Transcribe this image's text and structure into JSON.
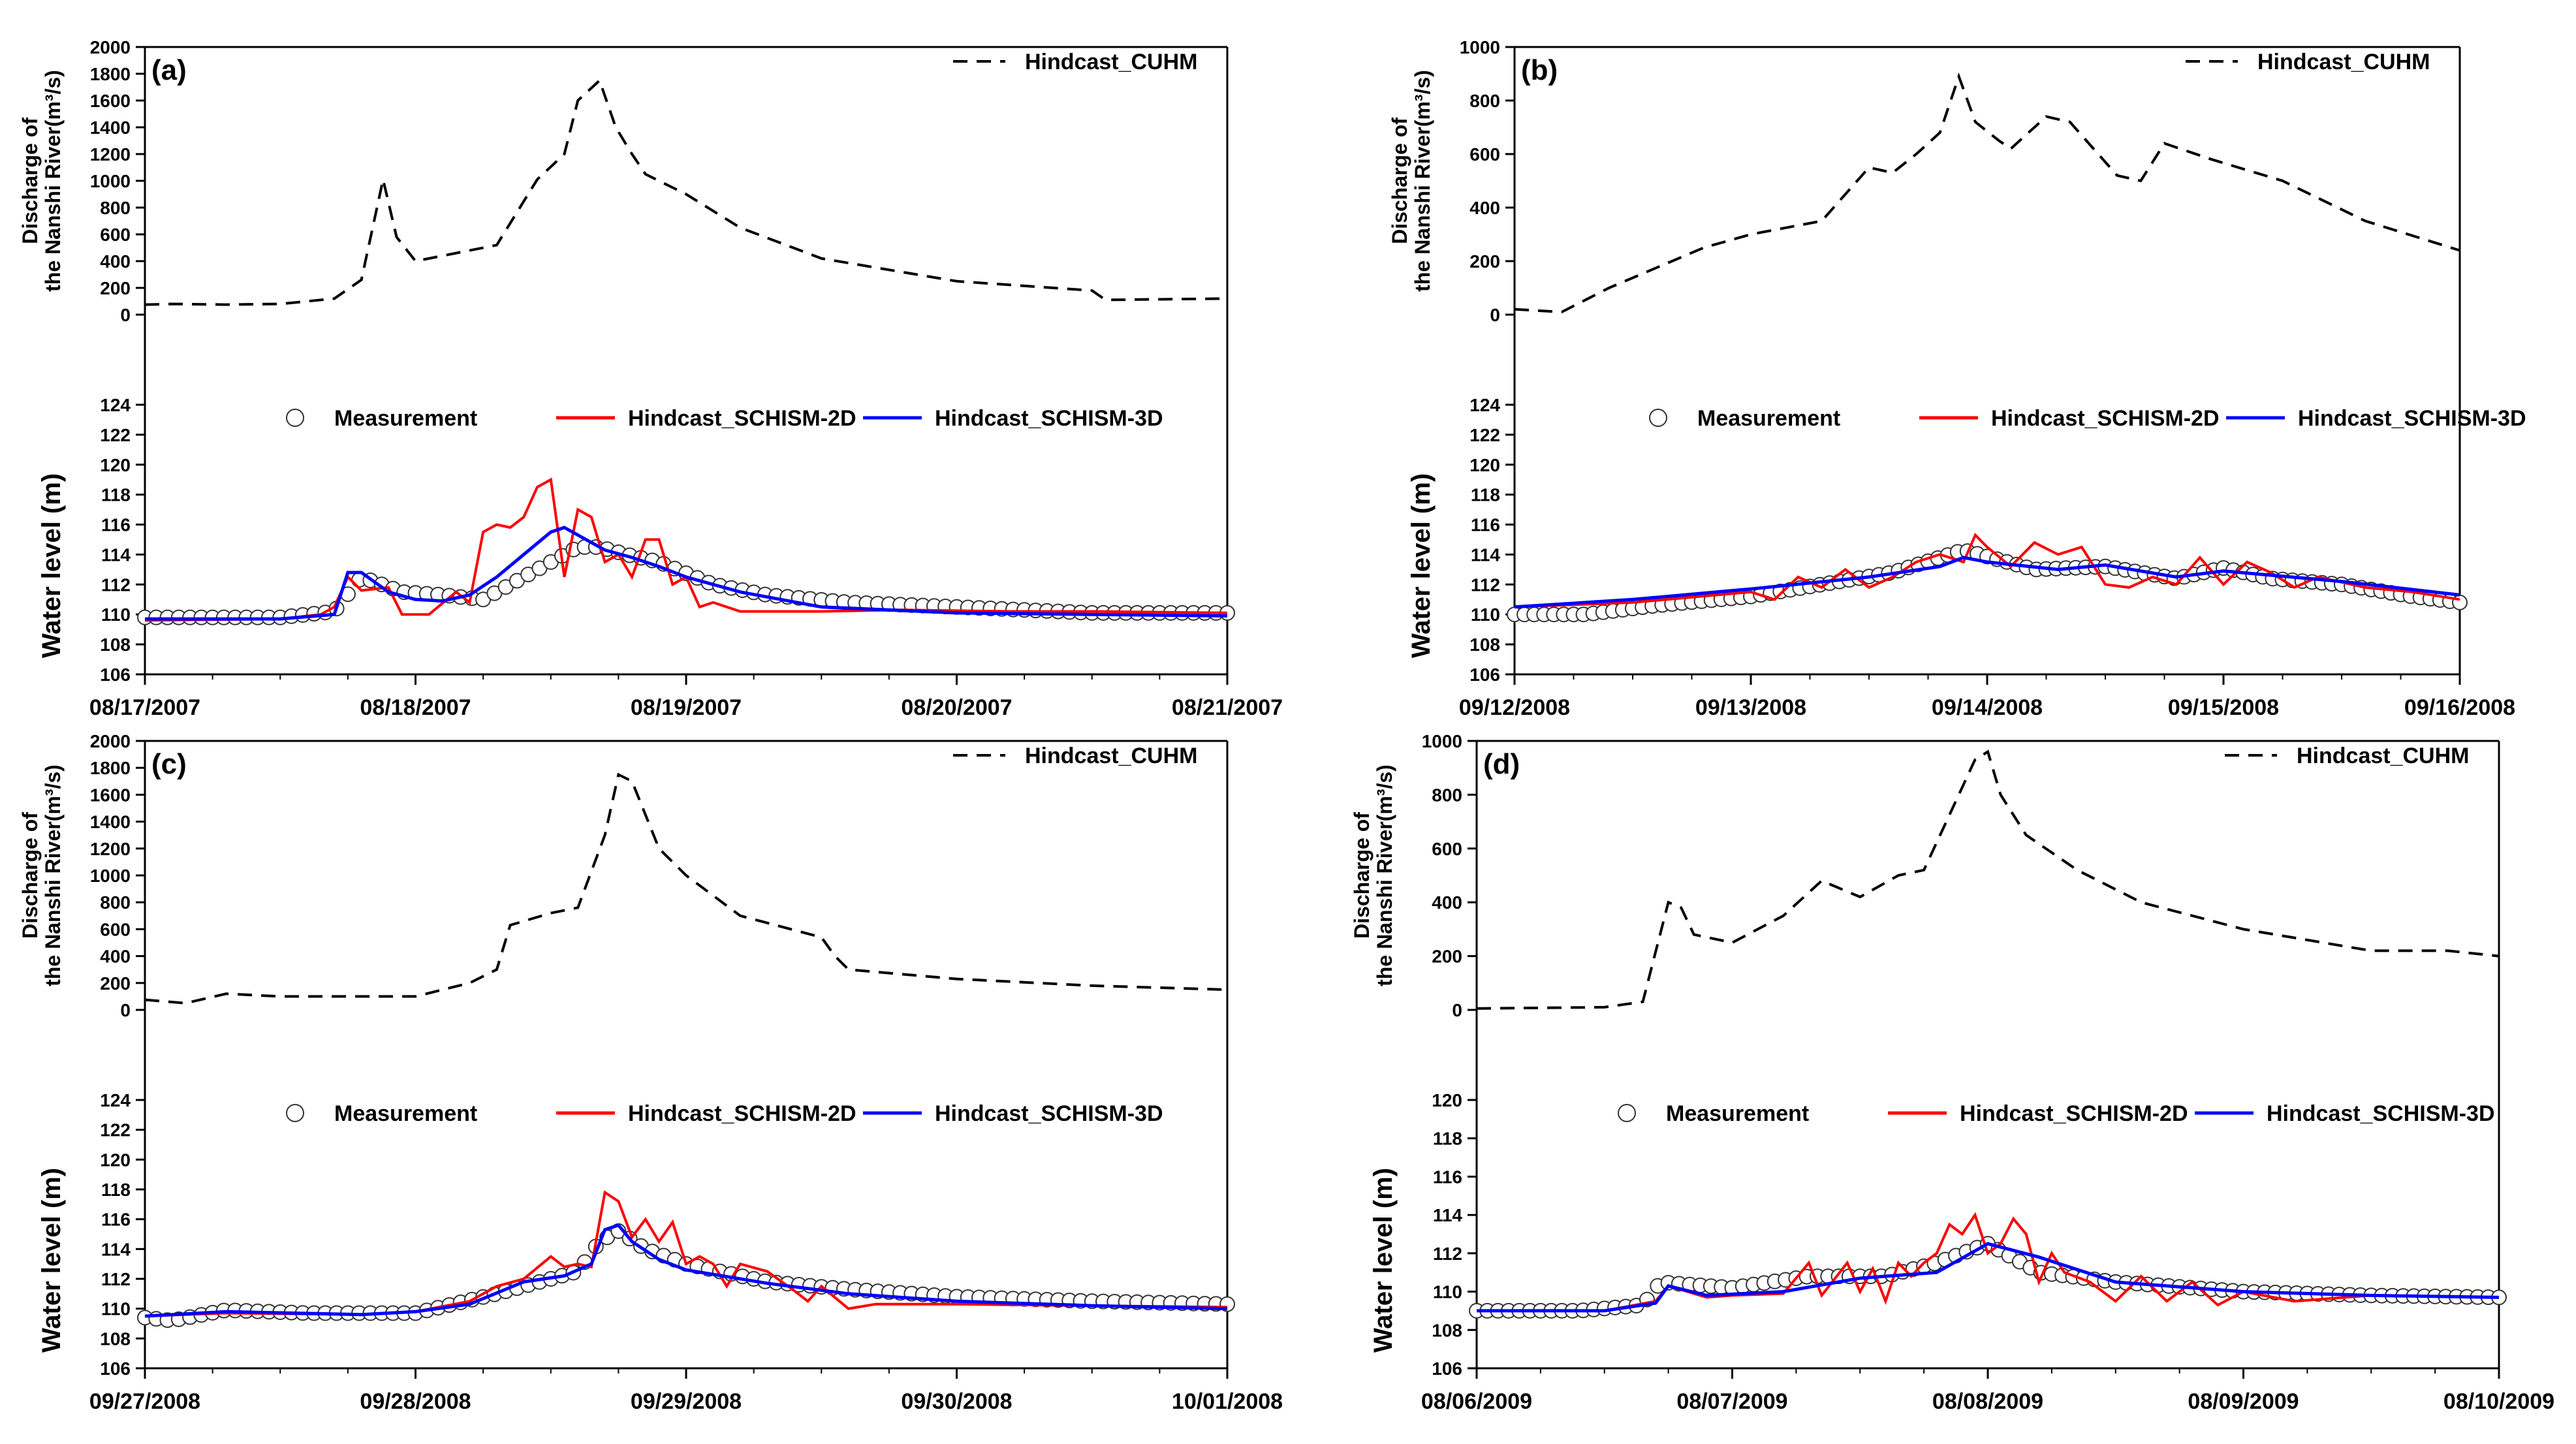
{
  "chart_data": [
    {
      "type": "line",
      "panel_label": "(a)",
      "discharge": {
        "ylabel_line1": "Discharge of",
        "ylabel_line2": "the Nanshi River(m³/s)",
        "ylim": [
          0,
          2000
        ],
        "yticks": [
          "0",
          "200",
          "400",
          "600",
          "800",
          "1000",
          "1200",
          "1400",
          "1600",
          "1800",
          "2000"
        ],
        "legend": "Hindcast_CUHM",
        "series": [
          {
            "name": "Hindcast_CUHM",
            "x": [
              0,
              0.1,
              0.3,
              0.5,
              0.7,
              0.8,
              0.88,
              0.93,
              1.0,
              1.3,
              1.45,
              1.55,
              1.6,
              1.68,
              1.74,
              1.8,
              1.85,
              2.0,
              2.2,
              2.5,
              3.0,
              3.5,
              3.55,
              4.0
            ],
            "y": [
              75,
              80,
              75,
              80,
              120,
              260,
              1010,
              580,
              400,
              520,
              1010,
              1200,
              1600,
              1750,
              1400,
              1200,
              1050,
              900,
              650,
              420,
              250,
              180,
              110,
              120
            ]
          }
        ]
      },
      "water": {
        "ylabel": "Water level (m)",
        "ylim": [
          106,
          124
        ],
        "yticks": [
          "106",
          "108",
          "110",
          "112",
          "114",
          "116",
          "118",
          "120",
          "122",
          "124"
        ],
        "legend": [
          "Measurement",
          "Hindcast_SCHISM-2D",
          "Hindcast_SCHISM-3D"
        ],
        "measurement": {
          "x": [
            0,
            0.5,
            0.7,
            0.8,
            0.95,
            1.1,
            1.25,
            1.4,
            1.5,
            1.6,
            1.68,
            1.78,
            1.9,
            2.1,
            2.3,
            2.6,
            3.0,
            3.5,
            4.0
          ],
          "y": [
            109.8,
            109.8,
            110.2,
            112.5,
            111.5,
            111.3,
            111.0,
            112.5,
            113.5,
            114.5,
            114.5,
            114.0,
            113.5,
            112.0,
            111.3,
            110.8,
            110.5,
            110.1,
            110.1
          ]
        },
        "schism2d": {
          "x": [
            0,
            0.5,
            0.65,
            0.7,
            0.75,
            0.8,
            0.9,
            0.95,
            1.05,
            1.15,
            1.2,
            1.25,
            1.3,
            1.35,
            1.4,
            1.45,
            1.5,
            1.55,
            1.6,
            1.65,
            1.7,
            1.75,
            1.8,
            1.85,
            1.9,
            1.95,
            2.0,
            2.05,
            2.1,
            2.2,
            2.3,
            2.5,
            2.8,
            3.2,
            3.5,
            4.0
          ],
          "y": [
            109.6,
            109.7,
            110.0,
            110.5,
            112.5,
            111.6,
            111.8,
            110.0,
            110.0,
            111.5,
            110.8,
            115.5,
            116.0,
            115.8,
            116.5,
            118.5,
            119.0,
            112.5,
            117.0,
            116.5,
            113.5,
            114.0,
            112.5,
            115.0,
            115.0,
            112.0,
            112.5,
            110.5,
            110.8,
            110.2,
            110.2,
            110.2,
            110.3,
            110.2,
            110.2,
            110.1
          ]
        },
        "schism3d": {
          "x": [
            0,
            0.5,
            0.7,
            0.75,
            0.8,
            0.9,
            1.0,
            1.1,
            1.2,
            1.3,
            1.4,
            1.5,
            1.55,
            1.6,
            1.7,
            1.8,
            1.9,
            2.0,
            2.2,
            2.5,
            3.0,
            3.5,
            4.0
          ],
          "y": [
            109.7,
            109.7,
            110.0,
            112.8,
            112.8,
            111.5,
            111.0,
            110.9,
            111.3,
            112.5,
            114.0,
            115.5,
            115.8,
            115.3,
            114.3,
            113.8,
            113.2,
            112.5,
            111.5,
            110.5,
            110.1,
            110.0,
            109.9
          ]
        }
      },
      "xlabels": [
        "08/17/2007",
        "08/18/2007",
        "08/19/2007",
        "08/20/2007",
        "08/21/2007"
      ],
      "xdays": 4
    },
    {
      "type": "line",
      "panel_label": "(b)",
      "discharge": {
        "ylabel_line1": "Discharge of",
        "ylabel_line2": "the Nanshi River(m³/s)",
        "ylim": [
          0,
          1000
        ],
        "yticks": [
          "0",
          "200",
          "400",
          "600",
          "800",
          "1000"
        ],
        "legend": "Hindcast_CUHM",
        "series": [
          {
            "name": "Hindcast_CUHM",
            "x": [
              0,
              0.2,
              0.4,
              0.8,
              1.0,
              1.3,
              1.5,
              1.6,
              1.7,
              1.8,
              1.88,
              1.95,
              2.05,
              2.1,
              2.25,
              2.35,
              2.55,
              2.65,
              2.75,
              2.95,
              3.25,
              3.6,
              4.0
            ],
            "y": [
              20,
              10,
              100,
              250,
              300,
              350,
              550,
              530,
              600,
              680,
              890,
              720,
              650,
              620,
              740,
              720,
              520,
              500,
              640,
              580,
              500,
              350,
              240
            ]
          }
        ]
      },
      "water": {
        "ylabel": "Water level (m)",
        "ylim": [
          106,
          124
        ],
        "yticks": [
          "106",
          "108",
          "110",
          "112",
          "114",
          "116",
          "118",
          "120",
          "122",
          "124"
        ],
        "legend": [
          "Measurement",
          "Hindcast_SCHISM-2D",
          "Hindcast_SCHISM-3D"
        ],
        "measurement": {
          "x": [
            0,
            0.3,
            0.6,
            1.0,
            1.3,
            1.6,
            1.9,
            2.2,
            2.5,
            2.8,
            3.0,
            3.2,
            3.5,
            3.8,
            4.0
          ],
          "y": [
            110.0,
            110.0,
            110.6,
            111.2,
            112.0,
            112.8,
            114.3,
            113.0,
            113.2,
            112.4,
            113.1,
            112.4,
            112.0,
            111.2,
            110.8
          ]
        },
        "schism2d": {
          "x": [
            0,
            0.5,
            1.0,
            1.1,
            1.2,
            1.3,
            1.4,
            1.5,
            1.6,
            1.7,
            1.8,
            1.9,
            1.95,
            2.0,
            2.1,
            2.2,
            2.3,
            2.4,
            2.5,
            2.6,
            2.7,
            2.8,
            2.9,
            3.0,
            3.1,
            3.2,
            3.3,
            3.4,
            3.6,
            3.8,
            4.0
          ],
          "y": [
            110.5,
            110.8,
            111.5,
            111.0,
            112.5,
            111.8,
            113.0,
            111.8,
            112.5,
            113.5,
            114.0,
            113.5,
            115.3,
            114.5,
            113.2,
            114.8,
            114.0,
            114.5,
            112.0,
            111.8,
            112.5,
            112.0,
            113.8,
            112.0,
            113.5,
            112.8,
            111.8,
            112.5,
            111.8,
            111.5,
            111.0
          ]
        },
        "schism3d": {
          "x": [
            0,
            0.5,
            1.0,
            1.5,
            1.8,
            1.9,
            2.0,
            2.3,
            2.5,
            2.8,
            3.0,
            3.5,
            4.0
          ],
          "y": [
            110.5,
            111.0,
            111.7,
            112.5,
            113.2,
            113.8,
            113.5,
            113.0,
            113.3,
            112.5,
            112.9,
            112.2,
            111.3
          ]
        }
      },
      "xlabels": [
        "09/12/2008",
        "09/13/2008",
        "09/14/2008",
        "09/15/2008",
        "09/16/2008"
      ],
      "xdays": 4
    },
    {
      "type": "line",
      "panel_label": "(c)",
      "discharge": {
        "ylabel_line1": "Discharge of",
        "ylabel_line2": "the Nanshi River(m³/s)",
        "ylim": [
          0,
          2000
        ],
        "yticks": [
          "0",
          "200",
          "400",
          "600",
          "800",
          "1000",
          "1200",
          "1400",
          "1600",
          "1800",
          "2000"
        ],
        "legend": "Hindcast_CUHM",
        "series": [
          {
            "name": "Hindcast_CUHM",
            "x": [
              0,
              0.15,
              0.3,
              0.5,
              1.0,
              1.2,
              1.3,
              1.35,
              1.5,
              1.6,
              1.7,
              1.75,
              1.8,
              1.9,
              2.0,
              2.2,
              2.5,
              2.55,
              2.6,
              3.0,
              3.5,
              4.0
            ],
            "y": [
              75,
              50,
              120,
              100,
              100,
              200,
              300,
              630,
              720,
              760,
              1300,
              1750,
              1700,
              1200,
              1000,
              700,
              540,
              400,
              300,
              230,
              180,
              150
            ]
          }
        ]
      },
      "water": {
        "ylabel": "Water level (m)",
        "ylim": [
          106,
          124
        ],
        "yticks": [
          "106",
          "108",
          "110",
          "112",
          "114",
          "116",
          "118",
          "120",
          "122",
          "124"
        ],
        "legend": [
          "Measurement",
          "Hindcast_SCHISM-2D",
          "Hindcast_SCHISM-3D"
        ],
        "measurement": {
          "x": [
            0,
            0.1,
            0.3,
            0.6,
            1.0,
            1.3,
            1.5,
            1.6,
            1.68,
            1.75,
            1.85,
            2.0,
            2.3,
            2.6,
            3.0,
            3.5,
            4.0
          ],
          "y": [
            109.4,
            109.2,
            109.9,
            109.7,
            109.7,
            111.0,
            112.0,
            112.5,
            114.5,
            115.2,
            114.0,
            113.0,
            111.8,
            111.3,
            110.8,
            110.5,
            110.3
          ]
        },
        "schism2d": {
          "x": [
            0,
            0.3,
            0.8,
            1.0,
            1.2,
            1.3,
            1.4,
            1.5,
            1.55,
            1.6,
            1.65,
            1.7,
            1.75,
            1.8,
            1.85,
            1.9,
            1.95,
            2.0,
            2.05,
            2.1,
            2.15,
            2.2,
            2.3,
            2.4,
            2.45,
            2.5,
            2.6,
            2.7,
            3.0,
            3.5,
            4.0
          ],
          "y": [
            109.5,
            109.7,
            109.6,
            109.8,
            110.5,
            111.5,
            112.0,
            113.5,
            112.8,
            113.0,
            112.8,
            117.8,
            117.2,
            114.8,
            116.0,
            114.5,
            115.8,
            113.0,
            113.5,
            113.0,
            111.5,
            113.0,
            112.5,
            111.2,
            110.5,
            111.5,
            110.0,
            110.3,
            110.3,
            110.2,
            110.1
          ]
        },
        "schism3d": {
          "x": [
            0,
            0.3,
            0.8,
            1.0,
            1.2,
            1.4,
            1.55,
            1.65,
            1.7,
            1.75,
            1.8,
            1.9,
            2.0,
            2.3,
            2.6,
            3.0,
            3.5,
            4.0
          ],
          "y": [
            109.5,
            109.8,
            109.6,
            109.8,
            110.3,
            111.8,
            112.2,
            113.0,
            115.3,
            115.6,
            114.5,
            113.3,
            112.6,
            111.7,
            111.0,
            110.5,
            110.2,
            110.0
          ]
        }
      },
      "xlabels": [
        "09/27/2008",
        "09/28/2008",
        "09/29/2008",
        "09/30/2008",
        "10/01/2008"
      ],
      "xdays": 4
    },
    {
      "type": "line",
      "panel_label": "(d)",
      "discharge": {
        "ylabel_line1": "Discharge of",
        "ylabel_line2": "the Nanshi River(m³/s)",
        "ylim": [
          0,
          1000
        ],
        "yticks": [
          "0",
          "200",
          "400",
          "600",
          "800",
          "1000"
        ],
        "legend": "Hindcast_CUHM",
        "series": [
          {
            "name": "Hindcast_CUHM",
            "x": [
              0,
              0.5,
              0.65,
              0.75,
              0.8,
              0.85,
              1.0,
              1.2,
              1.35,
              1.5,
              1.65,
              1.75,
              1.95,
              2.0,
              2.05,
              2.15,
              2.35,
              2.6,
              3.0,
              3.5,
              3.8,
              4.0
            ],
            "y": [
              5,
              10,
              30,
              400,
              380,
              280,
              250,
              350,
              480,
              420,
              500,
              520,
              930,
              960,
              800,
              650,
              520,
              400,
              300,
              220,
              220,
              200
            ]
          }
        ]
      },
      "water": {
        "ylabel": "Water level (m)",
        "ylim": [
          106,
          120
        ],
        "yticks": [
          "106",
          "108",
          "110",
          "112",
          "114",
          "116",
          "118",
          "120"
        ],
        "legend": [
          "Measurement",
          "Hindcast_SCHISM-2D",
          "Hindcast_SCHISM-3D"
        ],
        "measurement": {
          "x": [
            0,
            0.4,
            0.65,
            0.72,
            0.8,
            1.0,
            1.3,
            1.6,
            1.8,
            2.0,
            2.2,
            2.5,
            3.0,
            3.5,
            4.0
          ],
          "y": [
            109.0,
            109.0,
            109.3,
            110.5,
            110.4,
            110.2,
            110.8,
            110.8,
            111.5,
            112.5,
            111.0,
            110.5,
            110.0,
            109.8,
            109.7
          ]
        },
        "schism2d": {
          "x": [
            0,
            0.5,
            0.7,
            0.75,
            0.9,
            1.0,
            1.2,
            1.3,
            1.35,
            1.45,
            1.5,
            1.55,
            1.6,
            1.65,
            1.7,
            1.75,
            1.8,
            1.85,
            1.9,
            1.95,
            2.0,
            2.05,
            2.1,
            2.15,
            2.2,
            2.25,
            2.3,
            2.4,
            2.5,
            2.6,
            2.7,
            2.8,
            2.9,
            3.0,
            3.2,
            3.5,
            4.0
          ],
          "y": [
            109.0,
            109.0,
            109.5,
            110.3,
            109.7,
            109.8,
            109.9,
            111.5,
            109.8,
            111.5,
            110.0,
            111.2,
            109.5,
            111.5,
            110.8,
            111.5,
            112.0,
            113.5,
            113.0,
            114.0,
            112.0,
            112.5,
            113.8,
            113.0,
            110.5,
            112.0,
            111.0,
            110.5,
            109.5,
            110.8,
            109.5,
            110.5,
            109.3,
            110.0,
            109.5,
            109.8,
            109.7
          ]
        },
        "schism3d": {
          "x": [
            0,
            0.5,
            0.7,
            0.75,
            0.9,
            1.2,
            1.5,
            1.8,
            2.0,
            2.2,
            2.5,
            3.0,
            3.5,
            4.0
          ],
          "y": [
            109.0,
            109.0,
            109.4,
            110.3,
            109.8,
            110.0,
            110.7,
            111.0,
            112.5,
            111.8,
            110.5,
            110.0,
            109.8,
            109.7
          ]
        }
      },
      "xlabels": [
        "08/06/2009",
        "08/07/2009",
        "08/08/2009",
        "08/09/2009",
        "08/10/2009"
      ],
      "xdays": 4
    }
  ]
}
